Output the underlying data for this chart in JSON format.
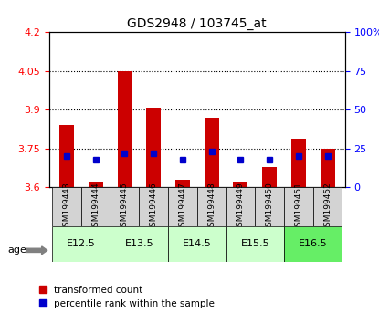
{
  "title": "GDS2948 / 103745_at",
  "samples": [
    "GSM199443",
    "GSM199444",
    "GSM199445",
    "GSM199446",
    "GSM199447",
    "GSM199448",
    "GSM199449",
    "GSM199450",
    "GSM199451",
    "GSM199452"
  ],
  "transformed_count": [
    3.84,
    3.62,
    4.05,
    3.91,
    3.63,
    3.87,
    3.62,
    3.68,
    3.79,
    3.75
  ],
  "percentile_rank": [
    20,
    18,
    22,
    22,
    18,
    23,
    18,
    18,
    20,
    20
  ],
  "age_groups": [
    {
      "label": "E12.5",
      "start": 0,
      "end": 2,
      "color": "#ccffcc"
    },
    {
      "label": "E13.5",
      "start": 2,
      "end": 4,
      "color": "#ccffcc"
    },
    {
      "label": "E14.5",
      "start": 4,
      "end": 6,
      "color": "#ccffcc"
    },
    {
      "label": "E15.5",
      "start": 6,
      "end": 8,
      "color": "#ccffcc"
    },
    {
      "label": "E16.5",
      "start": 8,
      "end": 10,
      "color": "#66ff66"
    }
  ],
  "ymin": 3.6,
  "ymax": 4.2,
  "yticks": [
    3.6,
    3.75,
    3.9,
    4.05,
    4.2
  ],
  "ytick_labels": [
    "3.6",
    "3.75",
    "3.9",
    "4.05",
    "4.2"
  ],
  "right_yticks": [
    0,
    25,
    50,
    75,
    100
  ],
  "right_ytick_labels": [
    "0",
    "25",
    "50",
    "75",
    "100%"
  ],
  "bar_color": "#cc0000",
  "percentile_color": "#0000cc",
  "bar_bottom": 3.6,
  "percentile_scale": 0.006,
  "grid_lines": [
    3.75,
    3.9,
    4.05
  ],
  "figsize": [
    4.15,
    3.54
  ],
  "dpi": 100
}
